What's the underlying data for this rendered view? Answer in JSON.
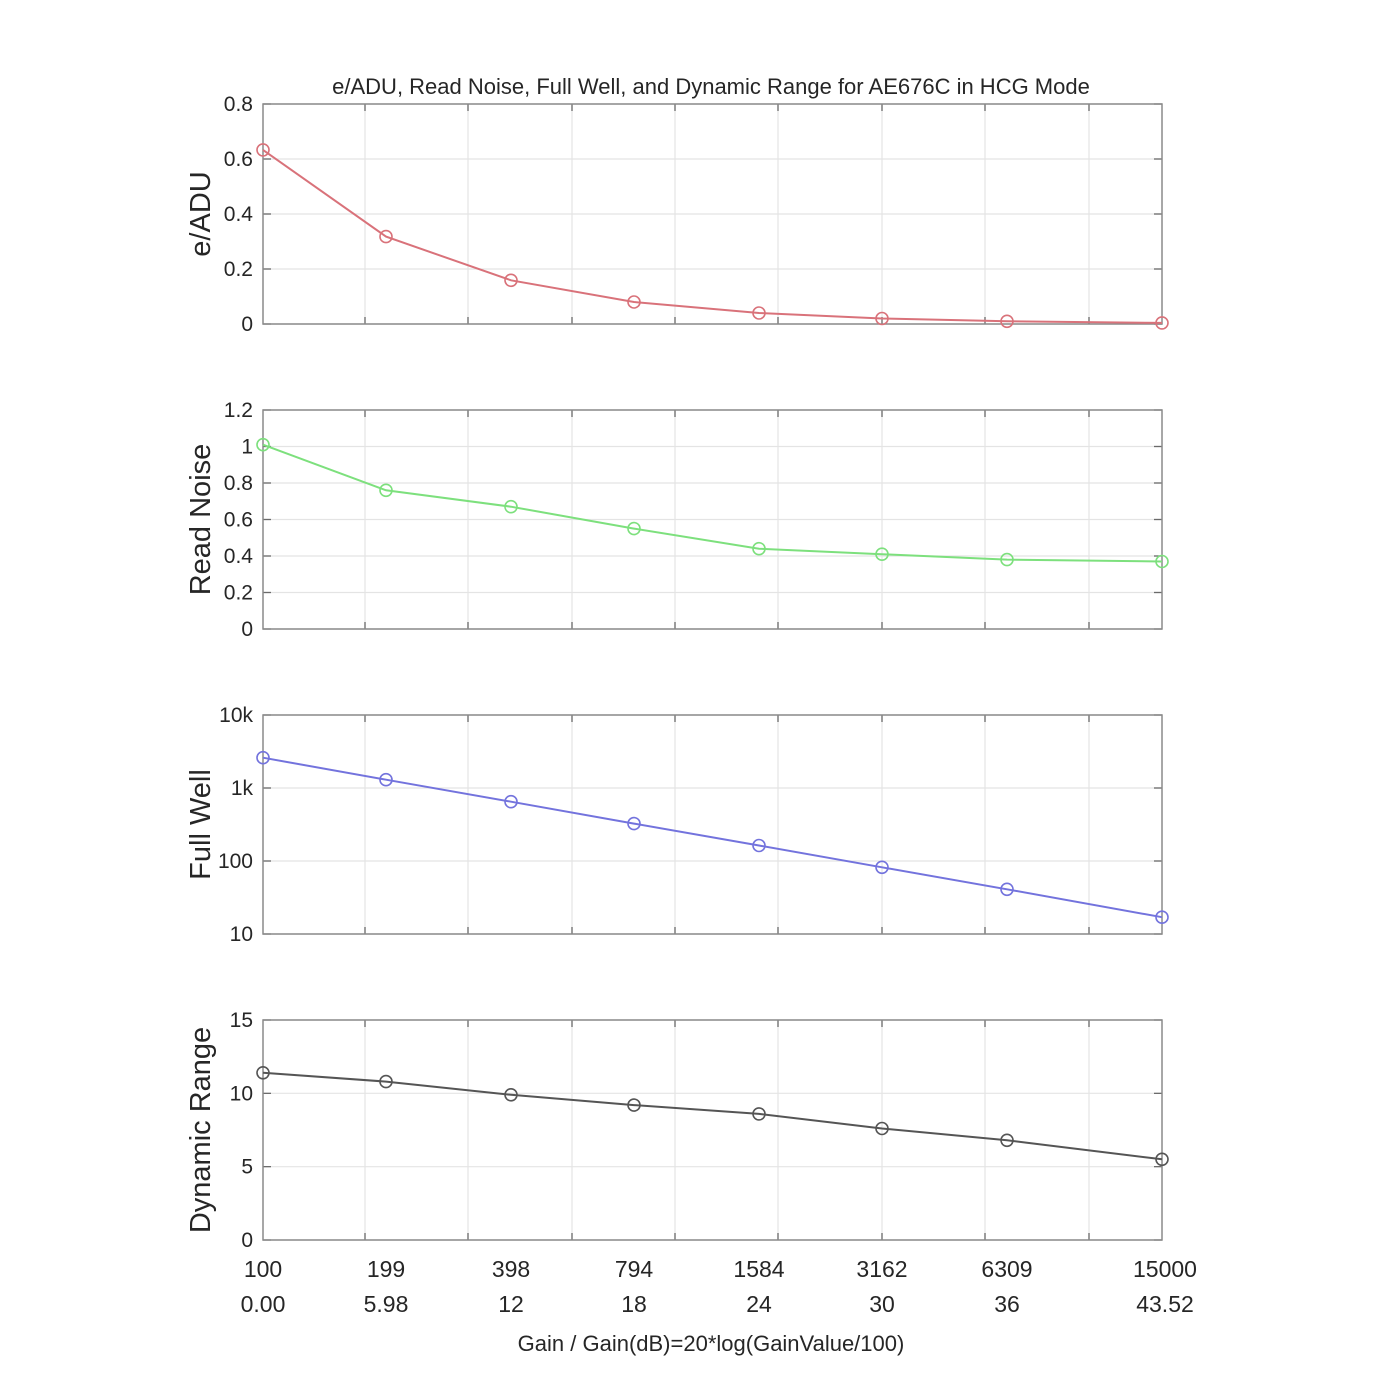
{
  "figure": {
    "title": "e/ADU, Read Noise, Full Well, and Dynamic Range for AE676C in HCG Mode",
    "xlabel": "Gain / Gain(dB)=20*log(GainValue/100)"
  },
  "chart_data": [
    {
      "type": "line",
      "ylabel": "e/ADU",
      "ylim": [
        0,
        0.8
      ],
      "yscale": "linear",
      "yticks": [
        0,
        0.2,
        0.4,
        0.6,
        0.8
      ],
      "ytick_labels": [
        "0",
        "0.2",
        "0.4",
        "0.6",
        "0.8"
      ],
      "color": "#d9727a",
      "categories": [
        "100",
        "199",
        "398",
        "794",
        "1584",
        "3162",
        "6309",
        "15000"
      ],
      "series": [
        {
          "values": [
            0.633,
            0.318,
            0.159,
            0.08,
            0.04,
            0.02,
            0.01,
            0.004
          ]
        }
      ]
    },
    {
      "type": "line",
      "ylabel": "Read Noise",
      "ylim": [
        0,
        1.2
      ],
      "yscale": "linear",
      "yticks": [
        0,
        0.2,
        0.4,
        0.6,
        0.8,
        1.0,
        1.2
      ],
      "ytick_labels": [
        "0",
        "0.2",
        "0.4",
        "0.6",
        "0.8",
        "1",
        "1.2"
      ],
      "color": "#7de07d",
      "categories": [
        "100",
        "199",
        "398",
        "794",
        "1584",
        "3162",
        "6309",
        "15000"
      ],
      "series": [
        {
          "values": [
            1.01,
            0.76,
            0.67,
            0.55,
            0.44,
            0.41,
            0.38,
            0.37
          ]
        }
      ]
    },
    {
      "type": "line",
      "ylabel": "Full Well",
      "ylim": [
        10,
        10000
      ],
      "yscale": "log",
      "yticks": [
        10,
        100,
        1000,
        10000
      ],
      "ytick_labels": [
        "10",
        "100",
        "1k",
        "10k"
      ],
      "color": "#7373dd",
      "categories": [
        "100",
        "199",
        "398",
        "794",
        "1584",
        "3162",
        "6309",
        "15000"
      ],
      "series": [
        {
          "values": [
            2600,
            1300,
            650,
            325,
            163,
            82,
            41,
            17
          ]
        }
      ]
    },
    {
      "type": "line",
      "ylabel": "Dynamic Range",
      "ylim": [
        0,
        15
      ],
      "yscale": "linear",
      "yticks": [
        0,
        5,
        10,
        15
      ],
      "ytick_labels": [
        "0",
        "5",
        "10",
        "15"
      ],
      "color": "#555555",
      "categories": [
        "100",
        "199",
        "398",
        "794",
        "1584",
        "3162",
        "6309",
        "15000"
      ],
      "categories_db": [
        "0.00",
        "5.98",
        "12",
        "18",
        "24",
        "30",
        "36",
        "43.52"
      ],
      "series": [
        {
          "values": [
            11.4,
            10.8,
            9.9,
            9.2,
            8.6,
            7.6,
            6.8,
            5.5
          ]
        }
      ]
    }
  ]
}
